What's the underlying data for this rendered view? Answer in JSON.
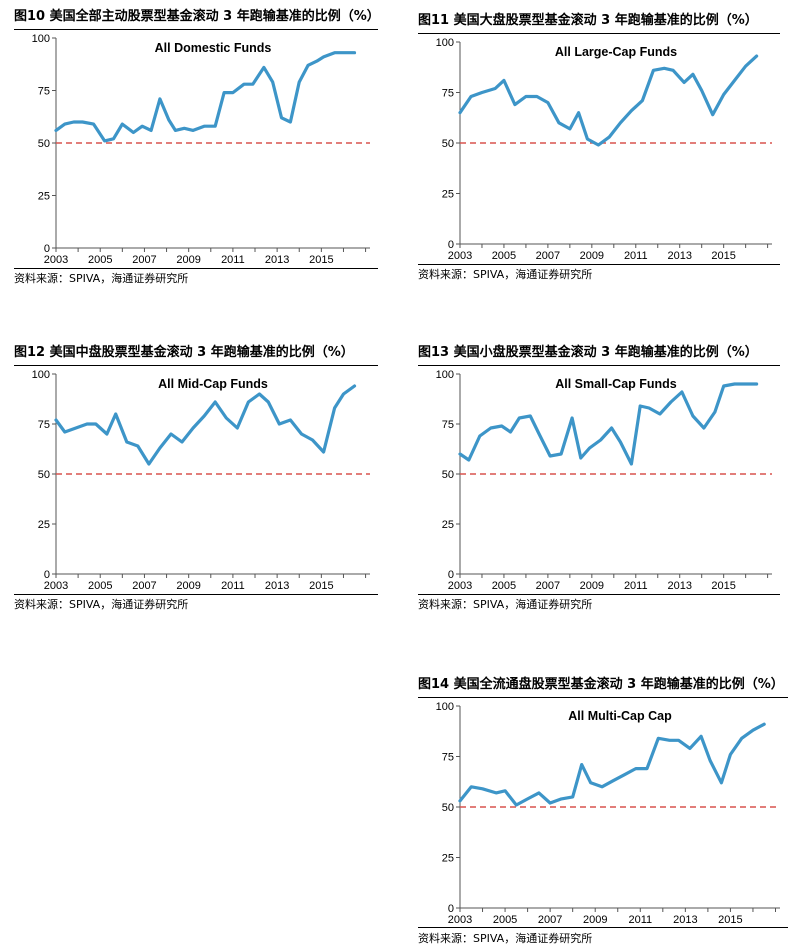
{
  "source_label": "资料来源：SPIVA，海通证券研究所",
  "colors": {
    "line": "#3d95c8",
    "reference": "#d9534f"
  },
  "panels": [
    {
      "figure_title": "图10 美国全部主动股票型基金滚动 3 年跑输基准的比例（%）",
      "chart_data": {
        "type": "line",
        "title": "All Domestic Funds",
        "xlabel": "",
        "ylabel": "",
        "xlim": [
          2003,
          2017.2
        ],
        "ylim": [
          0,
          100
        ],
        "xticks": [
          "2003",
          "2005",
          "2007",
          "2009",
          "2011",
          "2013",
          "2015"
        ],
        "yticks": [
          "0",
          "25",
          "50",
          "75",
          "100"
        ],
        "reference_line": 50,
        "series": [
          {
            "x": [
              2003.0,
              2003.4,
              2003.8,
              2004.2,
              2004.7,
              2005.2,
              2005.6,
              2006.0,
              2006.5,
              2006.9,
              2007.3,
              2007.7,
              2008.1,
              2008.4,
              2008.8,
              2009.2,
              2009.7,
              2010.2,
              2010.6,
              2011.0,
              2011.5,
              2011.9,
              2012.4,
              2012.8,
              2013.2,
              2013.6,
              2014.0,
              2014.4,
              2014.8,
              2015.1,
              2015.6,
              2016.0,
              2016.5
            ],
            "y": [
              56,
              59,
              60,
              60,
              59,
              51,
              52,
              59,
              55,
              58,
              56,
              71,
              61,
              56,
              57,
              56,
              58,
              58,
              74,
              74,
              78,
              78,
              86,
              79,
              62,
              60,
              79,
              87,
              89,
              91,
              93,
              93,
              93
            ]
          }
        ]
      }
    },
    {
      "figure_title": "图11 美国大盘股票型基金滚动 3 年跑输基准的比例（%）",
      "chart_data": {
        "type": "line",
        "title": "All Large-Cap Funds",
        "xlabel": "",
        "ylabel": "",
        "xlim": [
          2003,
          2017.2
        ],
        "ylim": [
          0,
          100
        ],
        "xticks": [
          "2003",
          "2005",
          "2007",
          "2009",
          "2011",
          "2013",
          "2015"
        ],
        "yticks": [
          "0",
          "25",
          "50",
          "75",
          "100"
        ],
        "reference_line": 50,
        "series": [
          {
            "x": [
              2003.0,
              2003.5,
              2004.0,
              2004.6,
              2005.0,
              2005.5,
              2006.0,
              2006.5,
              2007.0,
              2007.5,
              2008.0,
              2008.4,
              2008.8,
              2009.3,
              2009.8,
              2010.3,
              2010.8,
              2011.3,
              2011.8,
              2012.3,
              2012.7,
              2013.2,
              2013.6,
              2014.0,
              2014.5,
              2015.0,
              2015.5,
              2016.0,
              2016.5
            ],
            "y": [
              65,
              73,
              75,
              77,
              81,
              69,
              73,
              73,
              70,
              60,
              57,
              65,
              52,
              49,
              53,
              60,
              66,
              71,
              86,
              87,
              86,
              80,
              84,
              76,
              64,
              74,
              81,
              88,
              93
            ]
          }
        ]
      }
    },
    {
      "figure_title": "图12 美国中盘股票型基金滚动 3 年跑输基准的比例（%）",
      "chart_data": {
        "type": "line",
        "title": "All Mid-Cap Funds",
        "xlabel": "",
        "ylabel": "",
        "xlim": [
          2003,
          2017.2
        ],
        "ylim": [
          0,
          100
        ],
        "xticks": [
          "2003",
          "2005",
          "2007",
          "2009",
          "2011",
          "2013",
          "2015"
        ],
        "yticks": [
          "0",
          "25",
          "50",
          "75",
          "100"
        ],
        "reference_line": 50,
        "series": [
          {
            "x": [
              2003.0,
              2003.4,
              2003.9,
              2004.4,
              2004.8,
              2005.3,
              2005.7,
              2006.2,
              2006.7,
              2007.2,
              2007.7,
              2008.2,
              2008.7,
              2009.2,
              2009.7,
              2010.2,
              2010.7,
              2011.2,
              2011.7,
              2012.2,
              2012.6,
              2013.1,
              2013.6,
              2014.1,
              2014.6,
              2015.1,
              2015.6,
              2016.0,
              2016.5
            ],
            "y": [
              77,
              71,
              73,
              75,
              75,
              70,
              80,
              66,
              64,
              55,
              63,
              70,
              66,
              73,
              79,
              86,
              78,
              73,
              86,
              90,
              86,
              75,
              77,
              70,
              67,
              61,
              83,
              90,
              94
            ]
          }
        ]
      }
    },
    {
      "figure_title": "图13 美国小盘股票型基金滚动 3 年跑输基准的比例（%）",
      "chart_data": {
        "type": "line",
        "title": "All Small-Cap Funds",
        "xlabel": "",
        "ylabel": "",
        "xlim": [
          2003,
          2017.2
        ],
        "ylim": [
          0,
          100
        ],
        "xticks": [
          "2003",
          "2005",
          "2007",
          "2009",
          "2011",
          "2013",
          "2015"
        ],
        "yticks": [
          "0",
          "25",
          "50",
          "75",
          "100"
        ],
        "reference_line": 50,
        "series": [
          {
            "x": [
              2003.0,
              2003.4,
              2003.9,
              2004.4,
              2004.9,
              2005.3,
              2005.7,
              2006.2,
              2006.6,
              2007.1,
              2007.6,
              2008.1,
              2008.5,
              2008.9,
              2009.4,
              2009.9,
              2010.3,
              2010.8,
              2011.2,
              2011.6,
              2012.1,
              2012.6,
              2013.1,
              2013.6,
              2014.1,
              2014.6,
              2015.0,
              2015.5,
              2016.0,
              2016.5
            ],
            "y": [
              60,
              57,
              69,
              73,
              74,
              71,
              78,
              79,
              70,
              59,
              60,
              78,
              58,
              63,
              67,
              73,
              66,
              55,
              84,
              83,
              80,
              86,
              91,
              79,
              73,
              81,
              94,
              95,
              95,
              95
            ]
          }
        ]
      }
    },
    {
      "figure_title": "图14 美国全流通盘股票型基金滚动 3 年跑输基准的比例（%）",
      "chart_data": {
        "type": "line",
        "title": "All Multi-Cap Cap",
        "xlabel": "",
        "ylabel": "",
        "xlim": [
          2003,
          2017.2
        ],
        "ylim": [
          0,
          100
        ],
        "xticks": [
          "2003",
          "2005",
          "2007",
          "2009",
          "2011",
          "2013",
          "2015"
        ],
        "yticks": [
          "0",
          "25",
          "50",
          "75",
          "100"
        ],
        "reference_line": 50,
        "series": [
          {
            "x": [
              2003.0,
              2003.5,
              2004.0,
              2004.6,
              2005.0,
              2005.5,
              2006.0,
              2006.5,
              2007.0,
              2007.5,
              2008.0,
              2008.4,
              2008.8,
              2009.3,
              2009.8,
              2010.3,
              2010.8,
              2011.3,
              2011.8,
              2012.3,
              2012.7,
              2013.2,
              2013.7,
              2014.1,
              2014.6,
              2015.0,
              2015.5,
              2016.0,
              2016.5
            ],
            "y": [
              53,
              60,
              59,
              57,
              58,
              51,
              54,
              57,
              52,
              54,
              55,
              71,
              62,
              60,
              63,
              66,
              69,
              69,
              84,
              83,
              83,
              79,
              85,
              73,
              62,
              76,
              84,
              88,
              91
            ]
          }
        ]
      }
    }
  ]
}
